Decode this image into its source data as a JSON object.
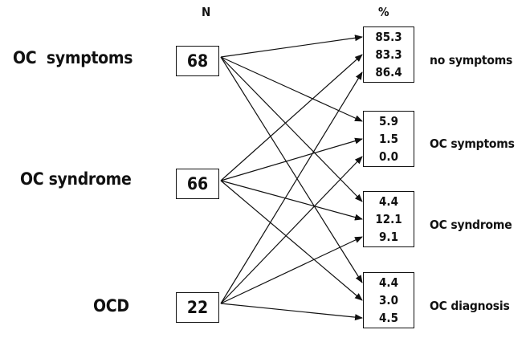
{
  "headers": {
    "n": "N",
    "pct": "%"
  },
  "sources": [
    {
      "label": "OC  symptoms",
      "n": "68"
    },
    {
      "label": "OC syndrome",
      "n": "66"
    },
    {
      "label": "OCD",
      "n": "22"
    }
  ],
  "outcomes": [
    {
      "label": "no symptoms",
      "values": [
        "85.3",
        "83.3",
        "86.4"
      ]
    },
    {
      "label": "OC symptoms",
      "values": [
        "5.9",
        "1.5",
        "0.0"
      ]
    },
    {
      "label": "OC syndrome",
      "values": [
        "4.4",
        "12.1",
        "9.1"
      ]
    },
    {
      "label": "OC diagnosis",
      "values": [
        "4.4",
        "3.0",
        "4.5"
      ]
    }
  ]
}
